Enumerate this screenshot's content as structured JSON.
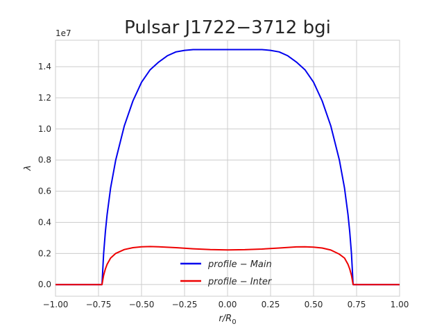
{
  "chart_data": {
    "type": "line",
    "title": "Pulsar J1722−3712 bgi",
    "xlabel": "r/R0",
    "xlabel_main": "r/R",
    "xlabel_sub": "0",
    "ylabel": "λ",
    "y_offset_text": "1e7",
    "xlim": [
      -1.0,
      1.0
    ],
    "ylim": [
      -0.075,
      1.57
    ],
    "x_ticks": [
      -1.0,
      -0.75,
      -0.5,
      -0.25,
      0.0,
      0.25,
      0.5,
      0.75,
      1.0
    ],
    "x_tick_labels": [
      "−1.00",
      "−0.75",
      "−0.50",
      "−0.25",
      "0.00",
      "0.25",
      "0.50",
      "0.75",
      "1.00"
    ],
    "y_ticks": [
      0.0,
      0.2,
      0.4,
      0.6,
      0.8,
      1.0,
      1.2,
      1.4
    ],
    "y_tick_labels": [
      "0.0",
      "0.2",
      "0.4",
      "0.6",
      "0.8",
      "1.0",
      "1.2",
      "1.4"
    ],
    "grid": true,
    "legend_position": "bottom-center",
    "series": [
      {
        "name": "profile − Main",
        "color": "#0000ee",
        "x": [
          -1.0,
          -0.73,
          -0.72,
          -0.71,
          -0.7,
          -0.68,
          -0.65,
          -0.6,
          -0.55,
          -0.5,
          -0.45,
          -0.4,
          -0.35,
          -0.3,
          -0.25,
          -0.2,
          -0.15,
          -0.1,
          0.0,
          0.1,
          0.15,
          0.2,
          0.25,
          0.3,
          0.35,
          0.4,
          0.45,
          0.5,
          0.55,
          0.6,
          0.65,
          0.68,
          0.7,
          0.71,
          0.72,
          0.73,
          1.0
        ],
        "y": [
          0.0,
          0.0,
          0.2,
          0.34,
          0.45,
          0.62,
          0.8,
          1.02,
          1.18,
          1.3,
          1.38,
          1.43,
          1.47,
          1.495,
          1.505,
          1.51,
          1.51,
          1.51,
          1.51,
          1.51,
          1.51,
          1.51,
          1.505,
          1.495,
          1.47,
          1.43,
          1.38,
          1.3,
          1.18,
          1.02,
          0.8,
          0.62,
          0.45,
          0.34,
          0.2,
          0.0,
          0.0
        ]
      },
      {
        "name": "profile − Inter",
        "color": "#ee0000",
        "x": [
          -1.0,
          -0.73,
          -0.72,
          -0.71,
          -0.7,
          -0.68,
          -0.65,
          -0.6,
          -0.55,
          -0.5,
          -0.45,
          -0.4,
          -0.3,
          -0.2,
          -0.1,
          0.0,
          0.1,
          0.2,
          0.3,
          0.4,
          0.45,
          0.5,
          0.55,
          0.6,
          0.65,
          0.68,
          0.7,
          0.71,
          0.72,
          0.73,
          1.0
        ],
        "y": [
          0.0,
          0.0,
          0.06,
          0.1,
          0.13,
          0.17,
          0.2,
          0.225,
          0.237,
          0.243,
          0.244,
          0.243,
          0.237,
          0.23,
          0.225,
          0.223,
          0.224,
          0.228,
          0.235,
          0.242,
          0.243,
          0.24,
          0.235,
          0.222,
          0.195,
          0.17,
          0.13,
          0.1,
          0.06,
          0.0,
          0.0
        ]
      }
    ]
  }
}
